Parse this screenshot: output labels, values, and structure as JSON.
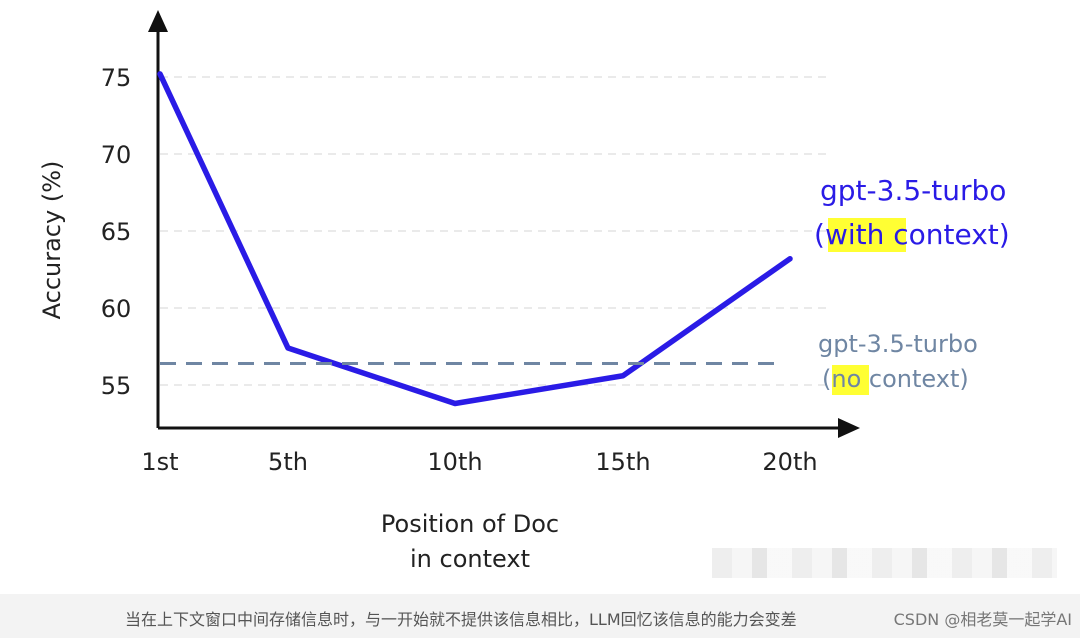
{
  "chart_data": {
    "type": "line",
    "title": "",
    "xlabel": [
      "Position of Doc",
      "in context"
    ],
    "ylabel": "Accuracy (%)",
    "categories": [
      "1st",
      "5th",
      "10th",
      "15th",
      "20th"
    ],
    "yticks": [
      75,
      70,
      65,
      60,
      55
    ],
    "ylim": [
      53,
      77
    ],
    "grid": "horizontal dashed",
    "series": [
      {
        "name": "gpt-3.5-turbo (with context)",
        "values": [
          75.2,
          57.4,
          53.8,
          55.6,
          63.2
        ],
        "color": "#2a1be6",
        "style": "solid"
      },
      {
        "name": "gpt-3.5-turbo (no context)",
        "values": [
          56.4,
          56.4,
          56.4,
          56.4,
          56.4
        ],
        "color": "#6f86a3",
        "style": "dashed"
      }
    ],
    "legend": {
      "with_context": {
        "line1": "gpt-3.5-turbo",
        "paren_open": "(",
        "highlight": "with",
        "rest": " context)"
      },
      "no_context": {
        "line1": "gpt-3.5-turbo",
        "paren_open": "(",
        "highlight": "no",
        "rest": " context)"
      },
      "highlight_color": "#ffff33"
    }
  },
  "caption": "当在上下文窗口中间存储信息时，与一开始就不提供该信息相比，LLM回忆该信息的能力会变差",
  "watermark": "CSDN @相老莫一起学AI"
}
